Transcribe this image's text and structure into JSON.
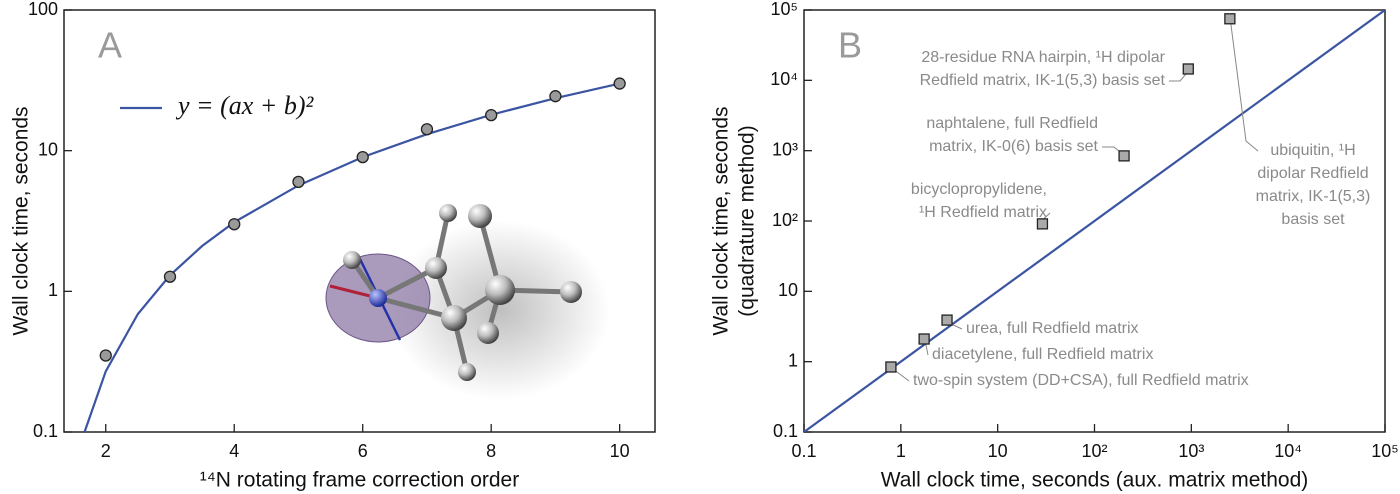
{
  "chart_data": [
    {
      "type": "scatter",
      "panel_label": "A",
      "xlabel": "¹⁴N rotating frame correction order",
      "ylabel": [
        "Wall clock time, seconds"
      ],
      "xlim": [
        1.35,
        10.55
      ],
      "xticks": [
        2,
        4,
        6,
        8,
        10
      ],
      "ylim": [
        0.1,
        100
      ],
      "yticks": [
        0.1,
        1,
        10,
        100
      ],
      "ylog": true,
      "xlog": false,
      "series": [
        {
          "name": "y = (ax + b)²",
          "color": "#3b55a3",
          "style": "line",
          "x": [
            1.67,
            2,
            2.5,
            3,
            3.5,
            4,
            5,
            6,
            7,
            8,
            9,
            10
          ],
          "values": [
            0.1,
            0.27,
            0.69,
            1.3,
            2.1,
            3.1,
            5.66,
            9.0,
            13.1,
            18.0,
            23.6,
            30.0
          ]
        },
        {
          "color": "#9a9a9a",
          "style": "points",
          "marker": "circle",
          "x": [
            2,
            3,
            4,
            5,
            6,
            7,
            8,
            9,
            10
          ],
          "values": [
            0.35,
            1.27,
            3.0,
            6.0,
            9.0,
            14.2,
            17.9,
            24.4,
            30.0
          ]
        }
      ]
    },
    {
      "type": "scatter",
      "panel_label": "B",
      "xlabel": "Wall clock time, seconds (aux. matrix method)",
      "ylabel": [
        "Wall clock time, seconds",
        "(quadrature method)"
      ],
      "xlim": [
        0.1,
        100000
      ],
      "xticks": [
        0.1,
        1,
        10,
        {
          "value": 100,
          "label": "10²"
        },
        {
          "value": 1000,
          "label": "10³"
        },
        {
          "value": 10000,
          "label": "10⁴"
        },
        {
          "value": 100000,
          "label": "10⁵"
        }
      ],
      "ylim": [
        0.1,
        100000
      ],
      "yticks": [
        0.1,
        1,
        10,
        {
          "value": 100,
          "label": "10²"
        },
        {
          "value": 1000,
          "label": "10³"
        },
        {
          "value": 10000,
          "label": "10⁴"
        },
        {
          "value": 100000,
          "label": "10⁵"
        }
      ],
      "xlog": true,
      "ylog": true,
      "series": [
        {
          "color": "#3b55a3",
          "style": "line",
          "x": [
            0.1,
            100000
          ],
          "values": [
            0.1,
            100000
          ]
        },
        {
          "color": "#aaaaaa",
          "style": "points",
          "marker": "square",
          "x": [
            0.79,
            1.74,
            3.0,
            29,
            202,
            930,
            2500
          ],
          "values": [
            0.84,
            2.1,
            3.9,
            91,
            843,
            14500,
            75000
          ],
          "annotations": [
            [
              "two-spin system (DD+CSA), full Redfield matrix"
            ],
            [
              "diacetylene, full Redfield matrix"
            ],
            [
              "urea, full Redfield matrix"
            ],
            [
              "bicyclopropylidene,",
              "¹H Redfield matrix"
            ],
            [
              "naphtalene, full Redfield",
              "matrix, IK-0(6) basis set"
            ],
            [
              "28-residue RNA hairpin, ¹H dipolar",
              "Redfield matrix, IK-1(5,3) basis set"
            ],
            [
              "ubiquitin, ¹H",
              "dipolar Redfield",
              "matrix, IK-1(5,3)",
              "basis set"
            ]
          ]
        }
      ]
    }
  ]
}
